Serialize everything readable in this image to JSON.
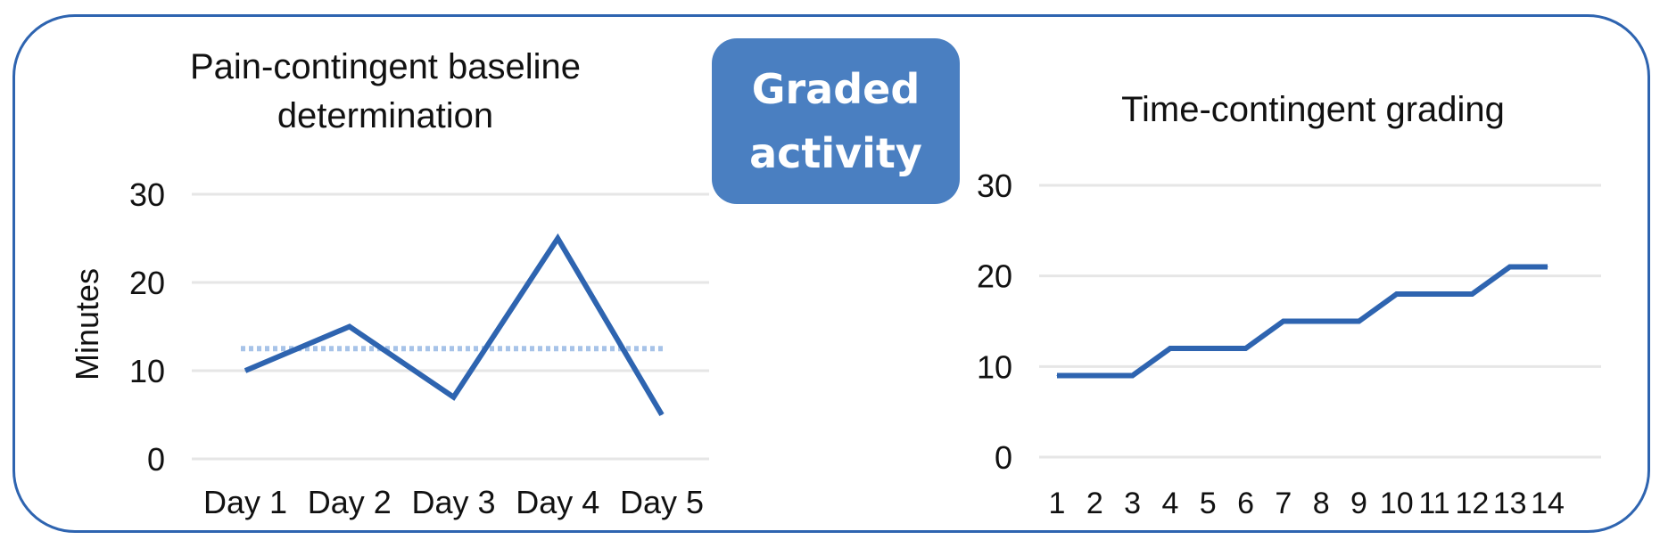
{
  "badge": {
    "line1": "Graded",
    "line2": "activity"
  },
  "colors": {
    "frame": "#2e64b0",
    "line": "#2e64b0",
    "dotted": "#a7c3e8",
    "grid": "#e6e6e6",
    "badge_bg": "#4a7fc1"
  },
  "chart_data": [
    {
      "type": "line",
      "title": "Pain-contingent baseline determination",
      "ylabel": "Minutes",
      "xlabel": "",
      "ylim": [
        0,
        30
      ],
      "yticks": [
        0,
        10,
        20,
        30
      ],
      "grid": true,
      "categories": [
        "Day 1",
        "Day 2",
        "Day 3",
        "Day 4",
        "Day 5"
      ],
      "series": [
        {
          "values": [
            10,
            15,
            7,
            25,
            5
          ]
        }
      ],
      "reference_line": {
        "value": 12.5,
        "style": "dotted"
      }
    },
    {
      "type": "line",
      "title": "Time-contingent grading",
      "ylabel": "",
      "xlabel": "",
      "ylim": [
        0,
        30
      ],
      "yticks": [
        0,
        10,
        20,
        30
      ],
      "grid": true,
      "categories": [
        "1",
        "2",
        "3",
        "4",
        "5",
        "6",
        "7",
        "8",
        "9",
        "10",
        "11",
        "12",
        "13",
        "14"
      ],
      "series": [
        {
          "values": [
            9,
            9,
            9,
            12,
            12,
            12,
            15,
            15,
            15,
            18,
            18,
            18,
            21,
            21
          ]
        }
      ]
    }
  ]
}
